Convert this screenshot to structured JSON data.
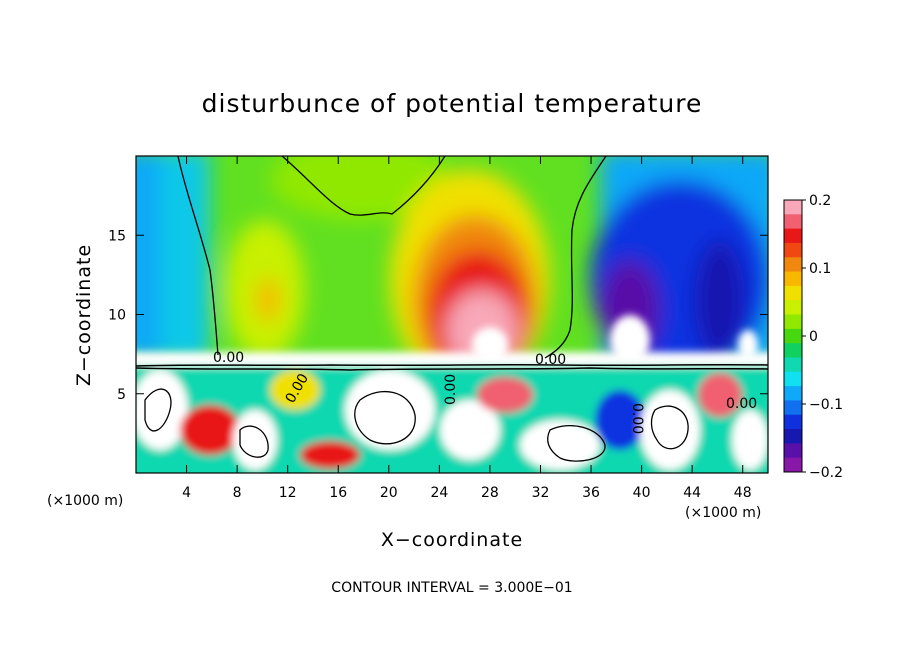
{
  "chart_data": {
    "type": "heatmap",
    "title": "disturbunce of potential temperature",
    "xlabel": "X−coordinate",
    "ylabel": "Z−coordinate",
    "x_unit": "(×1000 m)",
    "x_unit_right": "(×1000 m)",
    "xlim": [
      0,
      50
    ],
    "ylim": [
      0,
      20
    ],
    "x_ticks": [
      4,
      8,
      12,
      16,
      20,
      24,
      28,
      32,
      36,
      40,
      44,
      48
    ],
    "x_tick_labels": [
      "4",
      "8",
      "12",
      "16",
      "20",
      "24",
      "28",
      "32",
      "36",
      "40",
      "44",
      "48"
    ],
    "y_ticks": [
      5,
      10,
      15
    ],
    "y_tick_labels": [
      "5",
      "10",
      "15"
    ],
    "colorbar": {
      "range": [
        -0.2,
        0.2
      ],
      "ticks": [
        0.2,
        0.1,
        0,
        -0.1,
        -0.2
      ],
      "tick_labels": [
        "0.2",
        "0.1",
        "0",
        "−0.1",
        "−0.2"
      ],
      "colors": [
        "#f8a8b8",
        "#f06070",
        "#e81818",
        "#f04810",
        "#f08810",
        "#f8b800",
        "#f0e000",
        "#c8f000",
        "#90e800",
        "#48d810",
        "#10d060",
        "#10d8b0",
        "#10e0f0",
        "#10a8f8",
        "#1070f0",
        "#1030e0",
        "#1818b0",
        "#5810a8",
        "#8818a8"
      ]
    },
    "contour_labels": [
      "0.00",
      "0.00",
      "0.00",
      "0.00",
      "0.00",
      "0.00"
    ],
    "contour_interval_text": "CONTOUR INTERVAL = 3.000E−01"
  }
}
